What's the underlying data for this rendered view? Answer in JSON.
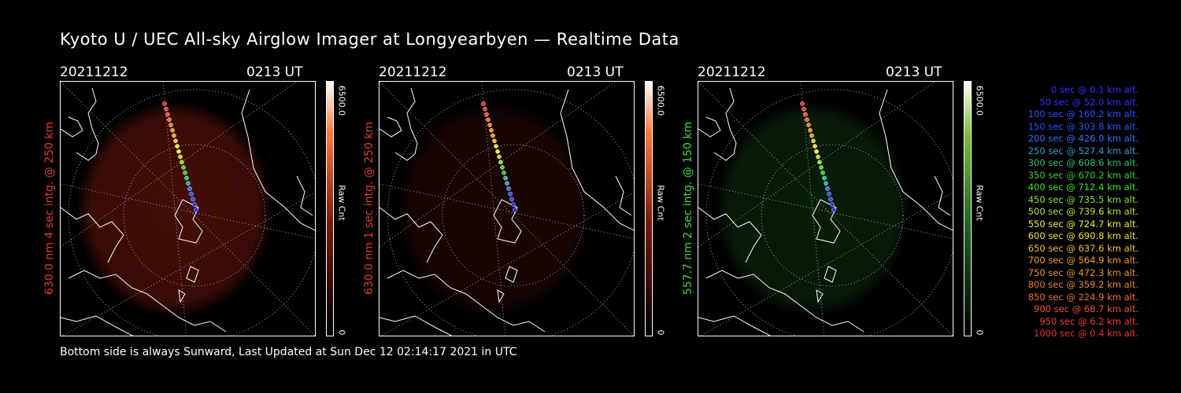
{
  "title": "Kyoto U / UEC All-sky Airglow Imager at Longyearbyen — Realtime Data",
  "footer": "Bottom side is always Sunward, Last Updated at Sun Dec 12 02:14:17 2021 in UTC",
  "panels": [
    {
      "date": "20211212",
      "time": "0213 UT",
      "ylabel": "630.0 nm 4 sec intg. @ 250 km",
      "label_color": "#e23b2c",
      "colorbar_max": "6500.0",
      "colorbar_min": "0",
      "colorbar_label": "Raw Cnt",
      "image_color": "#7a1a0e",
      "intensity": 0.55
    },
    {
      "date": "20211212",
      "time": "0213 UT",
      "ylabel": "630.0 nm 1 sec intg. @ 250 km",
      "label_color": "#e23b2c",
      "colorbar_max": "6500.0",
      "colorbar_min": "0",
      "colorbar_label": "Raw Cnt",
      "image_color": "#7a1a0e",
      "intensity": 0.2
    },
    {
      "date": "20211212",
      "time": "0213 UT",
      "ylabel": "557.7 nm 2 sec intg. @ 150 km",
      "label_color": "#3ddc3d",
      "colorbar_max": "6500.0",
      "colorbar_min": "0",
      "colorbar_label": "Raw Cnt",
      "image_color": "#1f6a1f",
      "intensity": 0.28
    }
  ],
  "trajectory_legend": [
    {
      "text": "0 sec @    0.1 km alt.",
      "color": "#3030ff"
    },
    {
      "text": "50 sec @   52.0 km alt.",
      "color": "#3030ff"
    },
    {
      "text": "100 sec @  160.2 km alt.",
      "color": "#3050ff"
    },
    {
      "text": "150 sec @  303.8 km alt.",
      "color": "#3050ff"
    },
    {
      "text": "200 sec @  426.0 km alt.",
      "color": "#3070ff"
    },
    {
      "text": "250 sec @  527.4 km alt.",
      "color": "#30a0d0"
    },
    {
      "text": "300 sec @  608.6 km alt.",
      "color": "#30c080"
    },
    {
      "text": "350 sec @  670.2 km alt.",
      "color": "#30d030"
    },
    {
      "text": "400 sec @  712.4 km alt.",
      "color": "#40e030"
    },
    {
      "text": "450 sec @  735.5 km alt.",
      "color": "#90e030"
    },
    {
      "text": "500 sec @  739.6 km alt.",
      "color": "#c0e030"
    },
    {
      "text": "550 sec @  724.7 km alt.",
      "color": "#f0f030"
    },
    {
      "text": "600 sec @  690.8 km alt.",
      "color": "#f0e030"
    },
    {
      "text": "650 sec @  637.6 km alt.",
      "color": "#f0c030"
    },
    {
      "text": "700 sec @  564.9 km alt.",
      "color": "#f0a030"
    },
    {
      "text": "750 sec @  472.3 km alt.",
      "color": "#f09030"
    },
    {
      "text": "800 sec @  359.2 km alt.",
      "color": "#f08030"
    },
    {
      "text": "850 sec @  224.9 km alt.",
      "color": "#f07030"
    },
    {
      "text": "900 sec @   68.7 km alt.",
      "color": "#f05030"
    },
    {
      "text": "950 sec @    6.2 km alt.",
      "color": "#f04030"
    },
    {
      "text": "1000 sec @    0.4 km alt.",
      "color": "#f03030"
    }
  ]
}
